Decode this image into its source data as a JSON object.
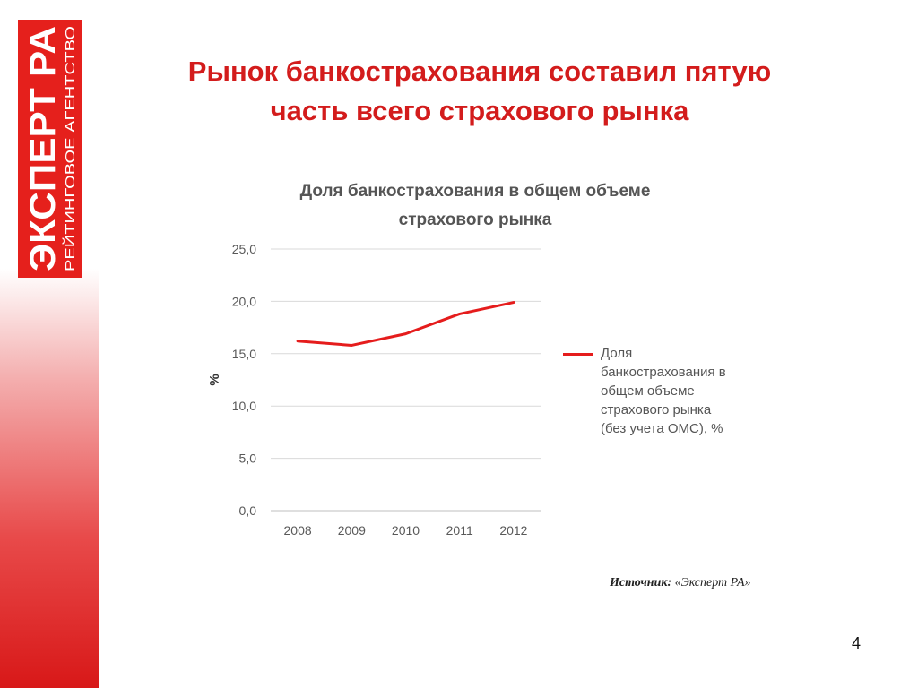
{
  "logo": {
    "main_text": "ЭКСПЕРТ РА",
    "sub_text": "РЕЙТИНГОВОЕ АГЕНТСТВО"
  },
  "slide": {
    "title_line1": "Рынок банкострахования составил пятую",
    "title_line2": "часть всего страхового рынка",
    "source_label": "Источник:",
    "source_value": "«Эксперт РА»",
    "page_number": "4"
  },
  "chart_data": {
    "type": "line",
    "title_line1": "Доля банкострахования в общем объеме",
    "title_line2": "страхового рынка",
    "ylabel": "%",
    "xlabel": "",
    "categories": [
      "2008",
      "2009",
      "2010",
      "2011",
      "2012"
    ],
    "series": [
      {
        "name": "Доля банкострахования в общем объеме страхового рынка (без учета ОМС), %",
        "legend_lines": [
          "Доля",
          "банкострахования в",
          "общем объеме",
          "страхового рынка",
          "(без учета ОМС), %"
        ],
        "values": [
          16.2,
          15.8,
          16.9,
          18.8,
          19.9
        ],
        "color": "#e51c1c"
      }
    ],
    "ylim": [
      0,
      25
    ],
    "yticks": [
      "0,0",
      "5,0",
      "10,0",
      "15,0",
      "20,0",
      "25,0"
    ],
    "grid": true,
    "legend_position": "right"
  },
  "colors": {
    "accent": "#d31c1c",
    "logo_red": "#e5201c",
    "grid": "#d9d9d9",
    "axis_text": "#595959"
  }
}
